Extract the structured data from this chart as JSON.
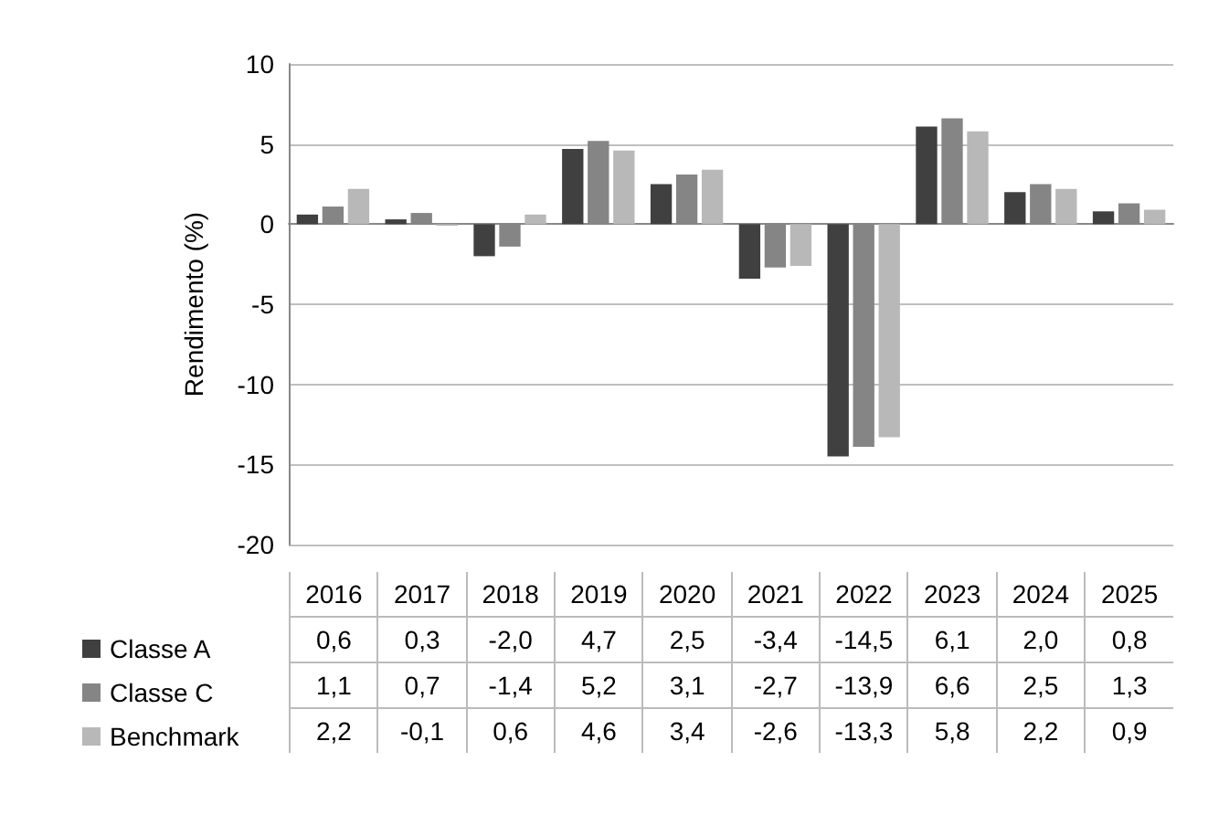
{
  "chart_data": {
    "type": "bar",
    "ylabel": "Rendimento (%)",
    "categories": [
      "2016",
      "2017",
      "2018",
      "2019",
      "2020",
      "2021",
      "2022",
      "2023",
      "2024",
      "2025"
    ],
    "series": [
      {
        "name": "Classe A",
        "color": "#404040",
        "values": [
          0.6,
          0.3,
          -2.0,
          4.7,
          2.5,
          -3.4,
          -14.5,
          6.1,
          2.0,
          0.8
        ],
        "value_labels": [
          "0,6",
          "0,3",
          "-2,0",
          "4,7",
          "2,5",
          "-3,4",
          "-14,5",
          "6,1",
          "2,0",
          "0,8"
        ]
      },
      {
        "name": "Classe C",
        "color": "#858585",
        "values": [
          1.1,
          0.7,
          -1.4,
          5.2,
          3.1,
          -2.7,
          -13.9,
          6.6,
          2.5,
          1.3
        ],
        "value_labels": [
          "1,1",
          "0,7",
          "-1,4",
          "5,2",
          "3,1",
          "-2,7",
          "-13,9",
          "6,6",
          "2,5",
          "1,3"
        ]
      },
      {
        "name": "Benchmark",
        "color": "#b8b8b8",
        "values": [
          2.2,
          -0.1,
          0.6,
          4.6,
          3.4,
          -2.6,
          -13.3,
          5.8,
          2.2,
          0.9
        ],
        "value_labels": [
          "2,2",
          "-0,1",
          "0,6",
          "4,6",
          "3,4",
          "-2,6",
          "-13,3",
          "5,8",
          "2,2",
          "0,9"
        ]
      }
    ],
    "ylim": [
      -20,
      10
    ],
    "yticks": [
      -20,
      -15,
      -10,
      -5,
      0,
      5,
      10
    ],
    "grid": "y",
    "legend": "bottom left"
  }
}
